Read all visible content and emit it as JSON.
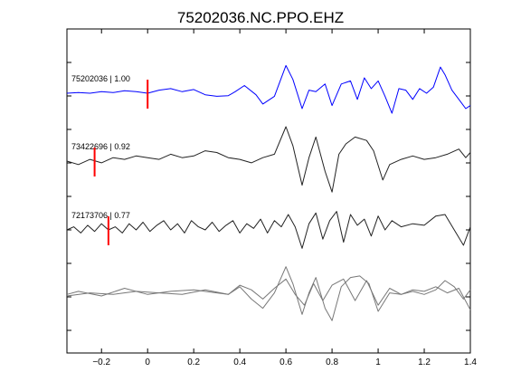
{
  "chart_data": {
    "type": "line",
    "title": "75202036.NC.PPO.EHZ",
    "xlabel": "",
    "ylabel": "",
    "xlim": [
      -0.35,
      1.4
    ],
    "xticks": [
      -0.2,
      0,
      0.2,
      0.4,
      0.6,
      0.8,
      1,
      1.2,
      1.4
    ],
    "xtick_labels": [
      "−0.2",
      "0",
      "0.2",
      "0.4",
      "0.6",
      "0.8",
      "1",
      "1.2",
      "1.4"
    ],
    "grid": false,
    "traces": [
      {
        "label": "75202036 | 1.00",
        "color": "#0000ff",
        "pick_time": 0.0,
        "pick_color": "#ff0000",
        "x": [
          -0.35,
          -0.3,
          -0.25,
          -0.2,
          -0.15,
          -0.1,
          -0.05,
          0.0,
          0.05,
          0.1,
          0.15,
          0.2,
          0.25,
          0.3,
          0.35,
          0.38,
          0.42,
          0.47,
          0.5,
          0.55,
          0.6,
          0.63,
          0.67,
          0.7,
          0.73,
          0.77,
          0.8,
          0.84,
          0.88,
          0.91,
          0.94,
          0.97,
          1.0,
          1.03,
          1.06,
          1.09,
          1.12,
          1.15,
          1.18,
          1.21,
          1.24,
          1.27,
          1.29,
          1.32,
          1.35,
          1.38,
          1.4
        ],
        "y": [
          0.0,
          0.02,
          0.0,
          0.05,
          0.02,
          0.08,
          0.05,
          0.0,
          0.1,
          0.15,
          0.05,
          0.12,
          -0.05,
          -0.1,
          -0.08,
          0.05,
          0.25,
          -0.05,
          -0.35,
          -0.1,
          0.9,
          0.45,
          -0.5,
          0.1,
          0.05,
          0.3,
          -0.4,
          0.3,
          0.4,
          -0.2,
          0.5,
          0.15,
          0.4,
          -0.1,
          -0.65,
          0.15,
          0.1,
          -0.2,
          0.15,
          0.0,
          0.2,
          0.85,
          0.6,
          0.1,
          -0.2,
          -0.5,
          -0.4
        ]
      },
      {
        "label": "73422696 | 0.92",
        "color": "#222222",
        "pick_time": -0.23,
        "pick_color": "#ff0000",
        "x": [
          -0.35,
          -0.3,
          -0.25,
          -0.2,
          -0.15,
          -0.1,
          -0.05,
          0.0,
          0.05,
          0.1,
          0.15,
          0.2,
          0.25,
          0.3,
          0.35,
          0.4,
          0.45,
          0.5,
          0.55,
          0.6,
          0.63,
          0.67,
          0.7,
          0.73,
          0.77,
          0.8,
          0.83,
          0.86,
          0.9,
          0.95,
          0.98,
          1.02,
          1.05,
          1.1,
          1.15,
          1.2,
          1.25,
          1.3,
          1.35,
          1.38,
          1.4
        ],
        "y": [
          0.0,
          -0.1,
          0.05,
          -0.05,
          0.1,
          0.05,
          0.15,
          0.1,
          0.05,
          0.2,
          0.1,
          0.15,
          0.3,
          0.25,
          0.1,
          0.05,
          -0.05,
          0.1,
          0.2,
          1.0,
          0.45,
          -0.7,
          0.1,
          0.7,
          -0.3,
          -0.9,
          0.2,
          0.5,
          0.7,
          0.6,
          0.3,
          -0.55,
          -0.1,
          0.05,
          0.15,
          0.05,
          0.1,
          0.2,
          0.35,
          0.1,
          0.25
        ]
      },
      {
        "label": "72173706 | 0.77",
        "color": "#222222",
        "pick_time": -0.17,
        "pick_color": "#ff0000",
        "x": [
          -0.35,
          -0.32,
          -0.29,
          -0.26,
          -0.23,
          -0.2,
          -0.17,
          -0.14,
          -0.11,
          -0.08,
          -0.05,
          -0.02,
          0.01,
          0.04,
          0.07,
          0.1,
          0.13,
          0.16,
          0.19,
          0.22,
          0.25,
          0.28,
          0.31,
          0.34,
          0.37,
          0.4,
          0.43,
          0.46,
          0.49,
          0.52,
          0.55,
          0.58,
          0.61,
          0.64,
          0.67,
          0.7,
          0.73,
          0.76,
          0.79,
          0.82,
          0.85,
          0.88,
          0.91,
          0.94,
          0.97,
          1.0,
          1.03,
          1.06,
          1.1,
          1.15,
          1.2,
          1.25,
          1.29,
          1.33,
          1.37,
          1.4
        ],
        "y": [
          0.0,
          0.1,
          -0.1,
          0.15,
          -0.05,
          0.2,
          0.0,
          0.1,
          -0.1,
          0.2,
          0.0,
          0.25,
          -0.05,
          0.15,
          0.3,
          0.0,
          0.2,
          -0.1,
          0.3,
          0.1,
          0.0,
          0.25,
          -0.05,
          0.15,
          0.3,
          -0.1,
          0.2,
          0.05,
          0.35,
          -0.1,
          0.3,
          0.1,
          0.5,
          0.1,
          -0.6,
          0.2,
          0.55,
          -0.3,
          0.3,
          0.6,
          -0.4,
          0.5,
          0.15,
          0.35,
          -0.2,
          0.45,
          0.0,
          0.3,
          0.1,
          0.2,
          0.15,
          0.45,
          0.5,
          0.0,
          -0.5,
          0.1
        ]
      },
      {
        "label": "",
        "color": "#777777",
        "x": [
          -0.35,
          -0.25,
          -0.15,
          -0.05,
          0.05,
          0.15,
          0.25,
          0.35,
          0.4,
          0.45,
          0.5,
          0.55,
          0.6,
          0.63,
          0.67,
          0.7,
          0.73,
          0.77,
          0.8,
          0.84,
          0.88,
          0.92,
          0.96,
          1.0,
          1.05,
          1.1,
          1.15,
          1.2,
          1.25,
          1.29,
          1.33,
          1.37,
          1.4
        ],
        "y": [
          0.0,
          0.1,
          0.05,
          0.15,
          0.1,
          0.05,
          0.2,
          0.05,
          0.3,
          -0.1,
          -0.4,
          0.1,
          0.95,
          0.4,
          -0.6,
          0.1,
          0.6,
          -0.4,
          -0.8,
          0.3,
          0.6,
          0.65,
          0.4,
          -0.5,
          0.1,
          0.05,
          0.15,
          0.05,
          0.2,
          0.5,
          0.3,
          -0.1,
          0.2
        ]
      },
      {
        "label": "",
        "color": "#777777",
        "x": [
          -0.35,
          -0.3,
          -0.2,
          -0.1,
          0.0,
          0.1,
          0.2,
          0.3,
          0.35,
          0.4,
          0.45,
          0.5,
          0.55,
          0.6,
          0.64,
          0.68,
          0.72,
          0.76,
          0.8,
          0.85,
          0.9,
          0.95,
          1.0,
          1.05,
          1.1,
          1.15,
          1.2,
          1.25,
          1.3,
          1.35,
          1.4
        ],
        "y": [
          0.05,
          0.15,
          0.0,
          0.25,
          0.05,
          0.15,
          0.2,
          0.1,
          0.05,
          0.35,
          0.2,
          -0.1,
          0.25,
          0.55,
          0.05,
          -0.3,
          0.4,
          -0.15,
          0.35,
          0.55,
          -0.15,
          0.5,
          -0.3,
          0.25,
          0.05,
          0.2,
          0.15,
          0.3,
          0.1,
          0.25,
          -0.45
        ]
      }
    ]
  }
}
